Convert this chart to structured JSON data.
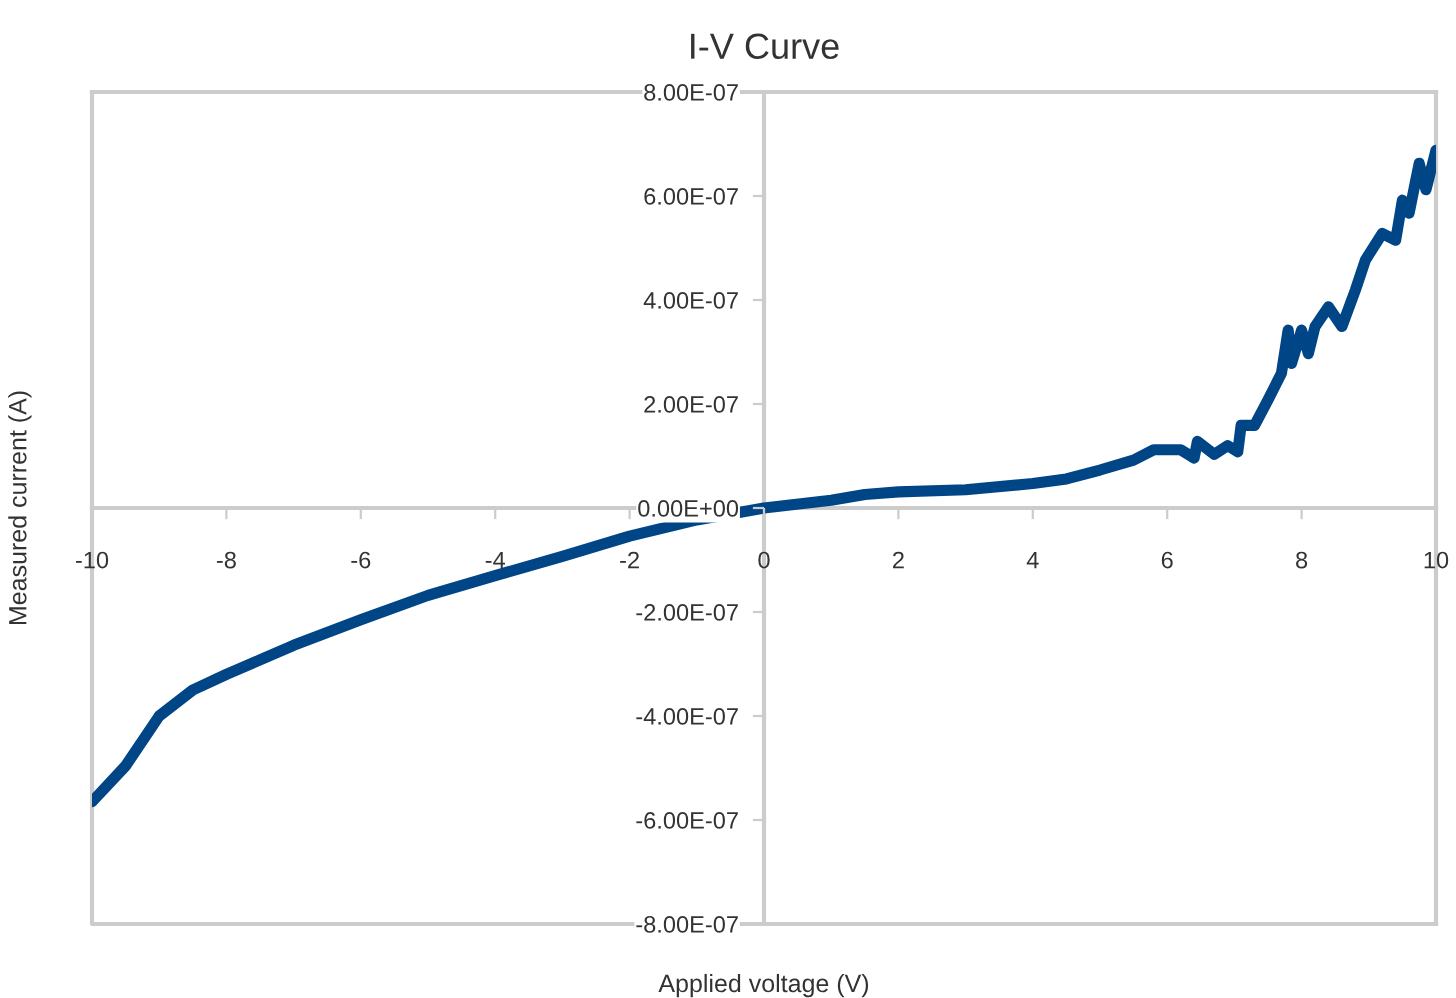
{
  "chart_data": {
    "type": "line",
    "title": "I-V Curve",
    "xlabel": "Applied voltage (V)",
    "ylabel": "Measured current (A)",
    "xlim": [
      -10,
      10
    ],
    "xticks": [
      -10,
      -8,
      -6,
      -4,
      -2,
      0,
      2,
      4,
      6,
      8,
      10
    ],
    "ylim": [
      -8e-07,
      8e-07
    ],
    "yticks": [
      {
        "value": -8e-07,
        "label": "-8.00E-07"
      },
      {
        "value": -6e-07,
        "label": "-6.00E-07"
      },
      {
        "value": -4e-07,
        "label": "-4.00E-07"
      },
      {
        "value": -2e-07,
        "label": "-2.00E-07"
      },
      {
        "value": 0,
        "label": "0.00E+00"
      },
      {
        "value": 2e-07,
        "label": "2.00E-07"
      },
      {
        "value": 4e-07,
        "label": "4.00E-07"
      },
      {
        "value": 6e-07,
        "label": "6.00E-07"
      },
      {
        "value": 8e-07,
        "label": "8.00E-07"
      }
    ],
    "grid": false,
    "legend": false,
    "marker": "none",
    "line_style": "solid",
    "series": [
      {
        "color": "#004586",
        "x": [
          -10,
          -9.5,
          -9,
          -8.5,
          -8,
          -7.5,
          -7,
          -6,
          -5,
          -4,
          -3,
          -2,
          -1,
          0,
          1,
          1.5,
          2,
          3,
          4,
          4.5,
          5,
          5.5,
          5.8,
          6.2,
          6.4,
          6.45,
          6.7,
          6.9,
          7.05,
          7.1,
          7.3,
          7.5,
          7.7,
          7.8,
          7.85,
          8.0,
          8.1,
          8.2,
          8.4,
          8.6,
          8.8,
          8.95,
          9.2,
          9.4,
          9.5,
          9.6,
          9.75,
          9.85,
          10
        ],
        "values": [
          -5.65e-07,
          -4.96e-07,
          -4e-07,
          -3.5e-07,
          -3.2e-07,
          -2.92e-07,
          -2.64e-07,
          -2.15e-07,
          -1.68e-07,
          -1.3e-07,
          -9.3e-08,
          -5.4e-08,
          -2.3e-08,
          0,
          1.5e-08,
          2.6e-08,
          3.1e-08,
          3.5e-08,
          4.7e-08,
          5.6e-08,
          7.3e-08,
          9.2e-08,
          1.12e-07,
          1.12e-07,
          9.6e-08,
          1.28e-07,
          1.03e-07,
          1.2e-07,
          1.08e-07,
          1.59e-07,
          1.59e-07,
          2.08e-07,
          2.59e-07,
          3.42e-07,
          2.78e-07,
          3.42e-07,
          2.97e-07,
          3.49e-07,
          3.87e-07,
          3.49e-07,
          4.19e-07,
          4.77e-07,
          5.28e-07,
          5.15e-07,
          5.92e-07,
          5.67e-07,
          6.63e-07,
          6.12e-07,
          6.88e-07
        ]
      }
    ]
  }
}
